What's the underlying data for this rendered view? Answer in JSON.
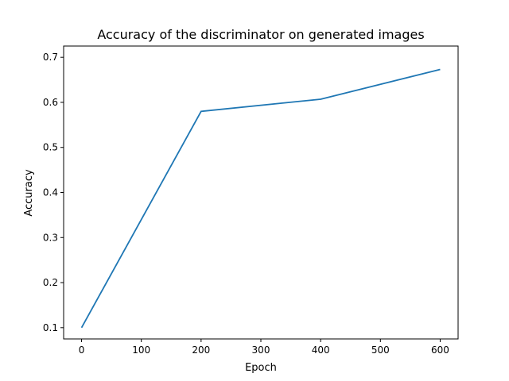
{
  "chart_data": {
    "type": "line",
    "title": "Accuracy of the discriminator on generated images",
    "xlabel": "Epoch",
    "ylabel": "Accuracy",
    "xlim": [
      -30,
      630
    ],
    "ylim": [
      0.075,
      0.725
    ],
    "xticks": [
      0,
      100,
      200,
      300,
      400,
      500,
      600
    ],
    "yticks": [
      0.1,
      0.2,
      0.3,
      0.4,
      0.5,
      0.6,
      0.7
    ],
    "xtick_labels": [
      "0",
      "100",
      "200",
      "300",
      "400",
      "500",
      "600"
    ],
    "ytick_labels": [
      "0.1",
      "0.2",
      "0.3",
      "0.4",
      "0.5",
      "0.6",
      "0.7"
    ],
    "grid": false,
    "legend": "none",
    "series": [
      {
        "color": "#1f77b4",
        "x": [
          0,
          200,
          400,
          600
        ],
        "y": [
          0.1,
          0.58,
          0.607,
          0.673
        ]
      }
    ]
  }
}
